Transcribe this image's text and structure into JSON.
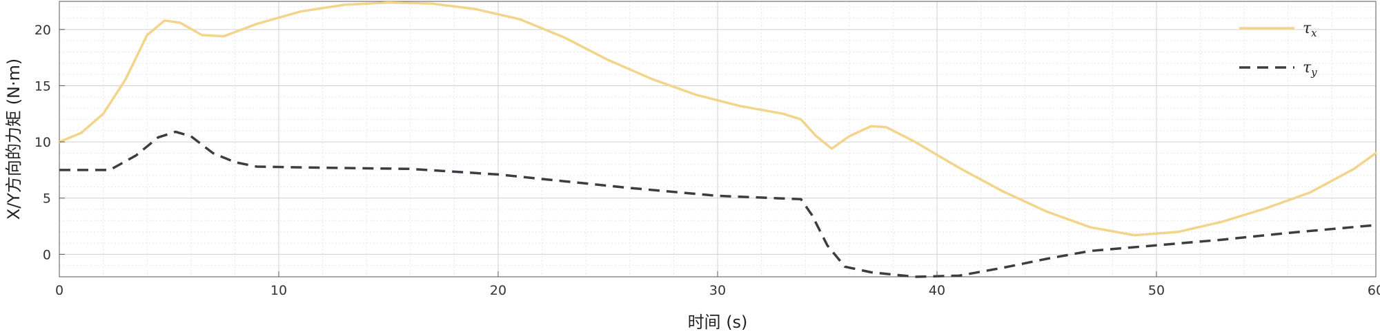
{
  "chart_data": {
    "type": "line",
    "xlabel": "时间 (s)",
    "ylabel": "X/Y方向的力矩 (N·m)",
    "xlim": [
      0,
      60
    ],
    "ylim": [
      -2,
      22.5
    ],
    "xticks": [
      0,
      10,
      20,
      30,
      40,
      50,
      60
    ],
    "yticks": [
      0,
      5,
      10,
      15,
      20
    ],
    "grid": true,
    "minor_grid": true,
    "legend_position": "top-right",
    "series": [
      {
        "name": "τx",
        "symbol": "τ",
        "subscript": "x",
        "color": "#F2D48A",
        "style": "solid",
        "points": [
          [
            0,
            10.0
          ],
          [
            1,
            10.8
          ],
          [
            2,
            12.5
          ],
          [
            3,
            15.5
          ],
          [
            4,
            19.5
          ],
          [
            4.8,
            20.8
          ],
          [
            5.5,
            20.6
          ],
          [
            6.5,
            19.5
          ],
          [
            7.5,
            19.4
          ],
          [
            9,
            20.5
          ],
          [
            11,
            21.6
          ],
          [
            13,
            22.2
          ],
          [
            15,
            22.4
          ],
          [
            17,
            22.3
          ],
          [
            19,
            21.8
          ],
          [
            21,
            20.9
          ],
          [
            23,
            19.3
          ],
          [
            25,
            17.3
          ],
          [
            27,
            15.6
          ],
          [
            29,
            14.2
          ],
          [
            31,
            13.2
          ],
          [
            33,
            12.5
          ],
          [
            33.8,
            12.0
          ],
          [
            34.5,
            10.5
          ],
          [
            35.2,
            9.4
          ],
          [
            36,
            10.5
          ],
          [
            37,
            11.4
          ],
          [
            37.7,
            11.3
          ],
          [
            39,
            10.0
          ],
          [
            41,
            7.7
          ],
          [
            43,
            5.6
          ],
          [
            45,
            3.8
          ],
          [
            47,
            2.4
          ],
          [
            49,
            1.7
          ],
          [
            51,
            2.0
          ],
          [
            53,
            2.9
          ],
          [
            55,
            4.1
          ],
          [
            57,
            5.5
          ],
          [
            59,
            7.6
          ],
          [
            60,
            9.0
          ]
        ]
      },
      {
        "name": "τy",
        "symbol": "τ",
        "subscript": "y",
        "color": "#3C3C42",
        "style": "dashed",
        "points": [
          [
            0,
            7.5
          ],
          [
            2.3,
            7.5
          ],
          [
            3.5,
            8.8
          ],
          [
            4.5,
            10.4
          ],
          [
            5.3,
            10.9
          ],
          [
            6,
            10.5
          ],
          [
            7,
            9.0
          ],
          [
            8,
            8.2
          ],
          [
            9,
            7.8
          ],
          [
            12,
            7.7
          ],
          [
            16,
            7.6
          ],
          [
            20,
            7.1
          ],
          [
            23,
            6.5
          ],
          [
            26,
            5.9
          ],
          [
            30,
            5.2
          ],
          [
            33.8,
            4.9
          ],
          [
            34.3,
            3.5
          ],
          [
            35,
            0.8
          ],
          [
            35.8,
            -1.1
          ],
          [
            37,
            -1.6
          ],
          [
            39,
            -2.0
          ],
          [
            41,
            -1.9
          ],
          [
            43,
            -1.2
          ],
          [
            45,
            -0.4
          ],
          [
            47,
            0.3
          ],
          [
            50,
            0.8
          ],
          [
            53,
            1.3
          ],
          [
            56,
            1.9
          ],
          [
            60,
            2.6
          ]
        ]
      }
    ]
  }
}
